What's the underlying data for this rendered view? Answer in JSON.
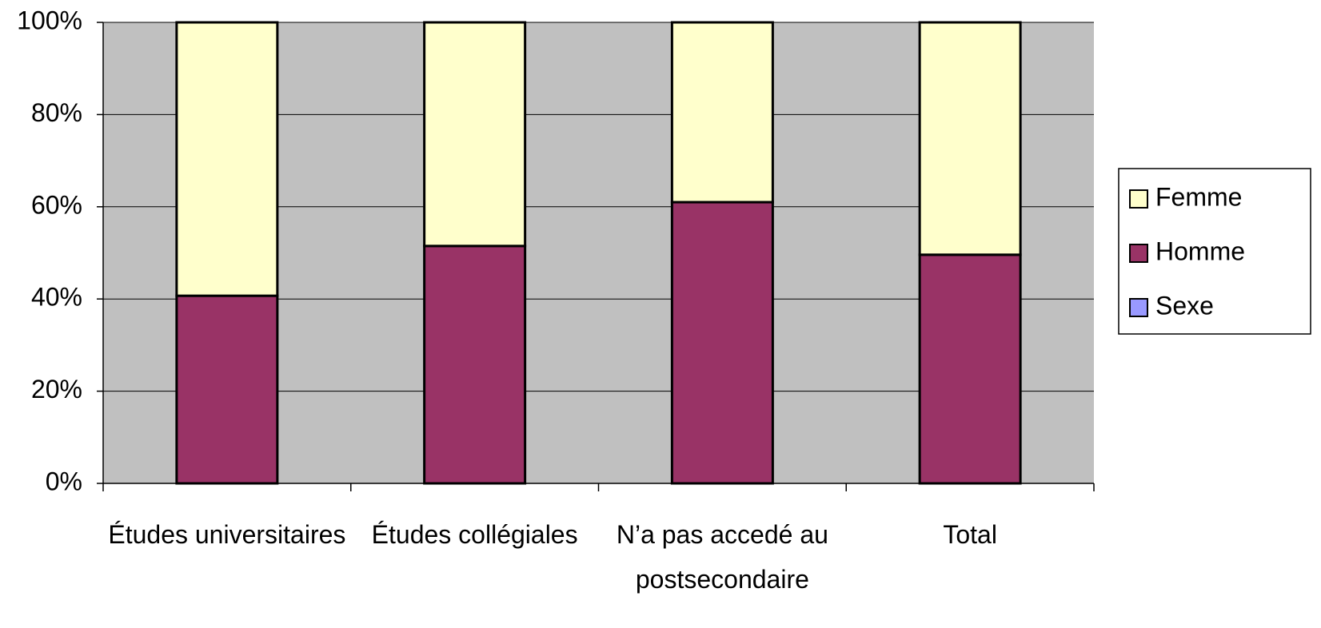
{
  "chart_data": {
    "type": "stacked_bar_100",
    "categories": [
      "Études universitaires",
      "Études collégiales",
      "N’a pas accedé au postsecondaire",
      "Total"
    ],
    "series": [
      {
        "name": "Sexe",
        "color": "#9999ff",
        "values": [
          0,
          0,
          0,
          0
        ]
      },
      {
        "name": "Homme",
        "color": "#993366",
        "values": [
          40.7,
          51.5,
          61,
          49.6
        ]
      },
      {
        "name": "Femme",
        "color": "#ffffcc",
        "values": [
          59.3,
          48.5,
          39,
          50.4
        ]
      }
    ],
    "ylim": [
      0,
      100
    ],
    "yticks": [
      {
        "value": 0,
        "label": "0%"
      },
      {
        "value": 20,
        "label": "20%"
      },
      {
        "value": 40,
        "label": "40%"
      },
      {
        "value": 60,
        "label": "60%"
      },
      {
        "value": 80,
        "label": "80%"
      },
      {
        "value": 100,
        "label": "100%"
      }
    ],
    "grid": true,
    "plot_background": "#c0c0c0",
    "legend": "right"
  }
}
